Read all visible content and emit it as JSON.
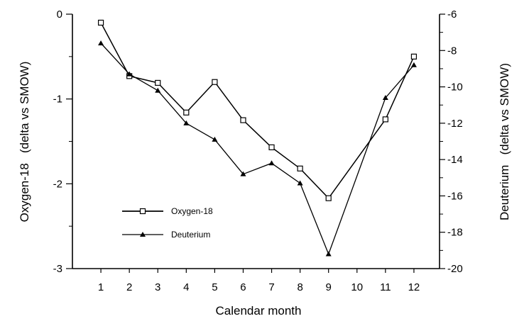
{
  "chart_data": {
    "type": "line",
    "title": "",
    "xlabel": "Calendar month",
    "ylabel": "Oxygen-18   (delta vs SMOW)",
    "y2label": "Deuterium   (delta vs SMOW)",
    "categories": [
      "1",
      "2",
      "3",
      "4",
      "5",
      "6",
      "7",
      "8",
      "9",
      "10",
      "11",
      "12"
    ],
    "x_ticks": [
      1,
      2,
      3,
      4,
      5,
      6,
      7,
      8,
      9,
      10,
      11,
      12
    ],
    "xlim": [
      0,
      12.9
    ],
    "ylim": [
      -3,
      0
    ],
    "y2lim": [
      -20,
      -6
    ],
    "y_ticks": [
      0,
      -1,
      -2,
      -3
    ],
    "y2_ticks": [
      -6,
      -8,
      -10,
      -12,
      -14,
      -16,
      -18,
      -20
    ],
    "grid": false,
    "legend_position": "lower-left",
    "series": [
      {
        "name": "Oxygen-18",
        "axis": "left",
        "marker": "open-square",
        "x": [
          1,
          2,
          3,
          4,
          5,
          6,
          7,
          8,
          9,
          11,
          12
        ],
        "values": [
          -0.1,
          -0.73,
          -0.81,
          -1.16,
          -0.8,
          -1.25,
          -1.57,
          -1.82,
          -2.17,
          -1.24,
          -0.5
        ]
      },
      {
        "name": "Deuterium",
        "axis": "right",
        "marker": "filled-triangle",
        "x": [
          1,
          2,
          3,
          4,
          5,
          6,
          7,
          8,
          9,
          11,
          12
        ],
        "values": [
          -7.6,
          -9.3,
          -10.2,
          -12.0,
          -12.9,
          -14.8,
          -14.2,
          -15.3,
          -19.2,
          -10.6,
          -8.8
        ]
      }
    ]
  }
}
